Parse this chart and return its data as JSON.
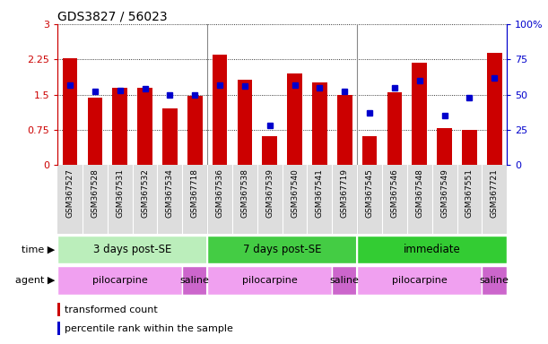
{
  "title": "GDS3827 / 56023",
  "samples": [
    "GSM367527",
    "GSM367528",
    "GSM367531",
    "GSM367532",
    "GSM367534",
    "GSM367718",
    "GSM367536",
    "GSM367538",
    "GSM367539",
    "GSM367540",
    "GSM367541",
    "GSM367719",
    "GSM367545",
    "GSM367546",
    "GSM367548",
    "GSM367549",
    "GSM367551",
    "GSM367721"
  ],
  "red_values": [
    2.28,
    1.43,
    1.65,
    1.65,
    1.2,
    1.48,
    2.35,
    1.82,
    0.62,
    1.95,
    1.75,
    1.5,
    0.62,
    1.55,
    2.18,
    0.78,
    0.75,
    2.38
  ],
  "blue_values": [
    57,
    52,
    53,
    54,
    50,
    50,
    57,
    56,
    28,
    57,
    55,
    52,
    37,
    55,
    60,
    35,
    48,
    62
  ],
  "ylim_left": [
    0,
    3
  ],
  "ylim_right": [
    0,
    100
  ],
  "yticks_left": [
    0,
    0.75,
    1.5,
    2.25,
    3
  ],
  "yticks_right": [
    0,
    25,
    50,
    75,
    100
  ],
  "bar_color": "#cc0000",
  "dot_color": "#0000cc",
  "time_groups": [
    {
      "label": "3 days post-SE",
      "start": 0,
      "end": 6,
      "color": "#bbeebb"
    },
    {
      "label": "7 days post-SE",
      "start": 6,
      "end": 12,
      "color": "#44cc44"
    },
    {
      "label": "immediate",
      "start": 12,
      "end": 18,
      "color": "#33cc33"
    }
  ],
  "agent_groups": [
    {
      "label": "pilocarpine",
      "start": 0,
      "end": 5,
      "color": "#f0a0f0"
    },
    {
      "label": "saline",
      "start": 5,
      "end": 6,
      "color": "#cc66cc"
    },
    {
      "label": "pilocarpine",
      "start": 6,
      "end": 11,
      "color": "#f0a0f0"
    },
    {
      "label": "saline",
      "start": 11,
      "end": 12,
      "color": "#cc66cc"
    },
    {
      "label": "pilocarpine",
      "start": 12,
      "end": 17,
      "color": "#f0a0f0"
    },
    {
      "label": "saline",
      "start": 17,
      "end": 18,
      "color": "#cc66cc"
    }
  ],
  "legend_red": "transformed count",
  "legend_blue": "percentile rank within the sample",
  "time_label": "time",
  "agent_label": "agent",
  "group_sep_color": "#888888",
  "xtick_bg": "#dddddd"
}
